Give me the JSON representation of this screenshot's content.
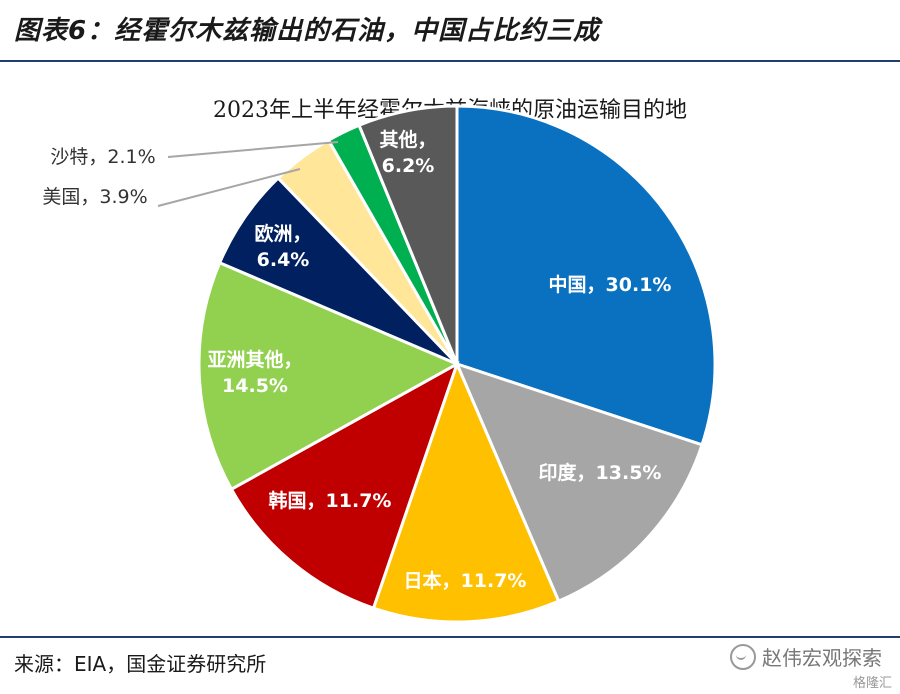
{
  "header": {
    "figure_title": "图表6：经霍尔木兹输出的石油，中国占比约三成"
  },
  "chart_data": {
    "type": "pie",
    "title": "2023年上半年经霍尔木兹海峡的原油运输目的地",
    "slices": [
      {
        "name": "中国",
        "value": 30.1,
        "label": "中国，30.1%",
        "color": "#0A70C0",
        "label_color": "#ffffff"
      },
      {
        "name": "印度",
        "value": 13.5,
        "label": "印度，13.5%",
        "color": "#A6A6A6",
        "label_color": "#ffffff"
      },
      {
        "name": "日本",
        "value": 11.7,
        "label": "日本，11.7%",
        "color": "#FFC000",
        "label_color": "#ffffff"
      },
      {
        "name": "韩国",
        "value": 11.7,
        "label": "韩国，11.7%",
        "color": "#C00000",
        "label_color": "#ffffff"
      },
      {
        "name": "亚洲其他",
        "value": 14.5,
        "label": "亚洲其他，14.5%",
        "color": "#92D050",
        "label_color": "#ffffff"
      },
      {
        "name": "欧洲",
        "value": 6.4,
        "label": "欧洲，6.4%",
        "color": "#002060",
        "label_color": "#ffffff"
      },
      {
        "name": "美国",
        "value": 3.9,
        "label": "美国，3.9%",
        "color": "#FFE699",
        "label_color": "#333333"
      },
      {
        "name": "沙特",
        "value": 2.1,
        "label": "沙特，2.1%",
        "color": "#00B050",
        "label_color": "#333333"
      },
      {
        "name": "其他",
        "value": 6.2,
        "label": "其他，6.2%",
        "color": "#595959",
        "label_color": "#ffffff"
      }
    ]
  },
  "footer": {
    "source": "来源：EIA，国金证券研究所",
    "watermark": "赵伟宏观探索",
    "watermark_sub": "格隆汇"
  }
}
